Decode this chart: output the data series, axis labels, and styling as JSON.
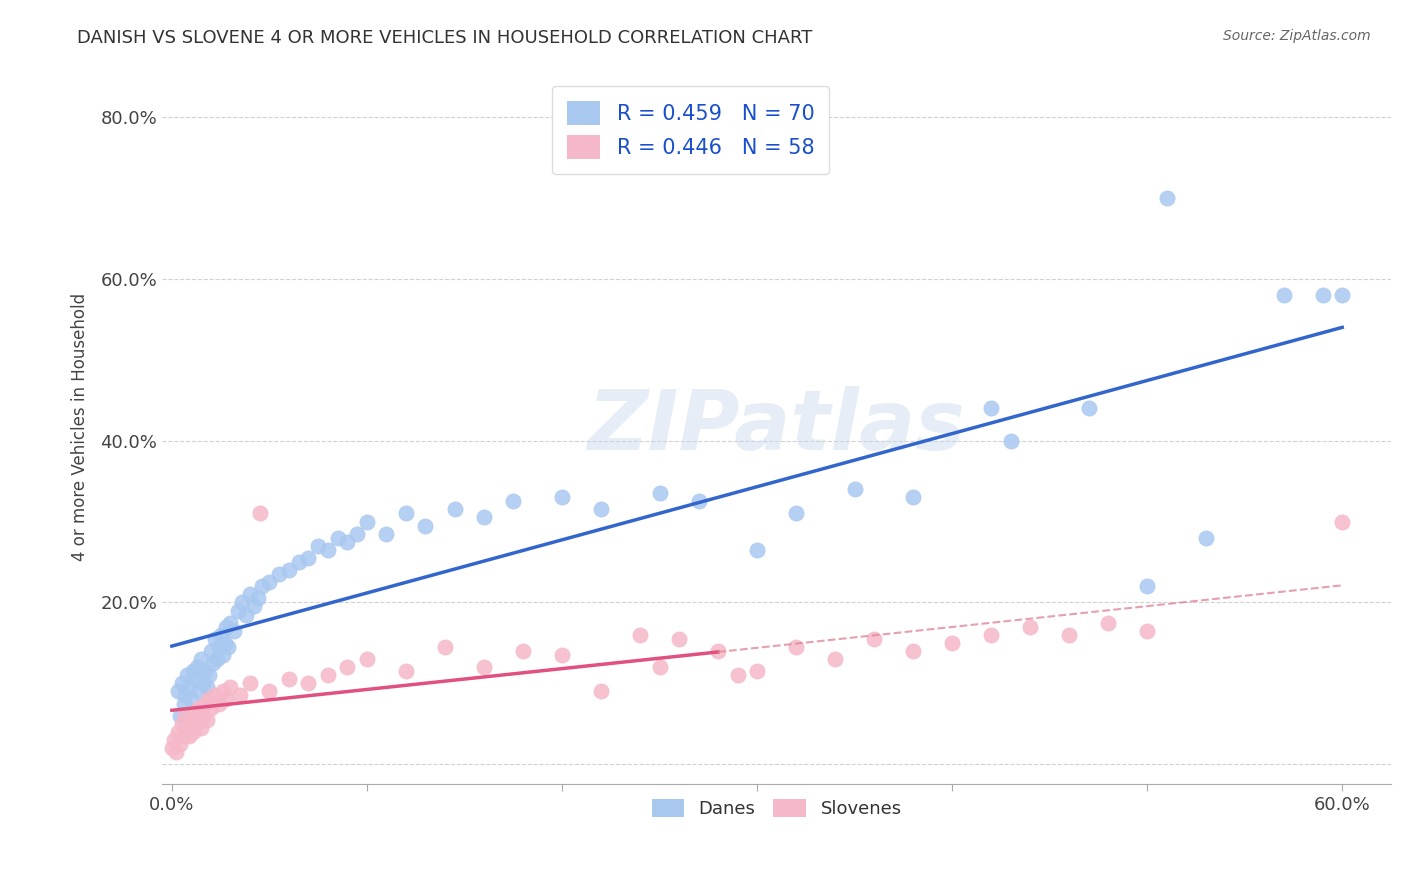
{
  "title": "DANISH VS SLOVENE 4 OR MORE VEHICLES IN HOUSEHOLD CORRELATION CHART",
  "source_text": "Source: ZipAtlas.com",
  "ylabel": "4 or more Vehicles in Household",
  "xlim": [
    -0.005,
    0.625
  ],
  "ylim": [
    -0.025,
    0.86
  ],
  "xtick_vals": [
    0.0,
    0.1,
    0.2,
    0.3,
    0.4,
    0.5,
    0.6
  ],
  "xtick_labels": [
    "0.0%",
    "",
    "",
    "",
    "",
    "",
    "60.0%"
  ],
  "ytick_vals": [
    0.0,
    0.2,
    0.4,
    0.6,
    0.8
  ],
  "ytick_labels": [
    "",
    "20.0%",
    "40.0%",
    "60.0%",
    "80.0%"
  ],
  "danes_R": 0.459,
  "danes_N": 70,
  "slovenes_R": 0.446,
  "slovenes_N": 58,
  "danes_color": "#a8c8f0",
  "slovenes_color": "#f5b8c8",
  "danes_line_color": "#3366cc",
  "slovenes_line_color": "#e05080",
  "dashed_line_color": "#e08898",
  "watermark": "ZIPatlas",
  "background_color": "#ffffff",
  "danes_x": [
    0.003,
    0.004,
    0.005,
    0.006,
    0.007,
    0.008,
    0.009,
    0.01,
    0.011,
    0.012,
    0.013,
    0.014,
    0.015,
    0.016,
    0.017,
    0.018,
    0.019,
    0.02,
    0.021,
    0.022,
    0.023,
    0.024,
    0.025,
    0.026,
    0.027,
    0.028,
    0.029,
    0.03,
    0.032,
    0.034,
    0.036,
    0.038,
    0.04,
    0.042,
    0.044,
    0.046,
    0.05,
    0.055,
    0.06,
    0.065,
    0.07,
    0.075,
    0.08,
    0.085,
    0.09,
    0.095,
    0.1,
    0.11,
    0.12,
    0.13,
    0.145,
    0.16,
    0.175,
    0.2,
    0.22,
    0.25,
    0.27,
    0.3,
    0.32,
    0.35,
    0.38,
    0.42,
    0.43,
    0.47,
    0.5,
    0.51,
    0.53,
    0.57,
    0.59,
    0.6
  ],
  "danes_y": [
    0.09,
    0.06,
    0.1,
    0.075,
    0.085,
    0.11,
    0.095,
    0.08,
    0.115,
    0.105,
    0.12,
    0.09,
    0.13,
    0.1,
    0.115,
    0.095,
    0.11,
    0.14,
    0.125,
    0.155,
    0.13,
    0.145,
    0.16,
    0.135,
    0.15,
    0.17,
    0.145,
    0.175,
    0.165,
    0.19,
    0.2,
    0.185,
    0.21,
    0.195,
    0.205,
    0.22,
    0.225,
    0.235,
    0.24,
    0.25,
    0.255,
    0.27,
    0.265,
    0.28,
    0.275,
    0.285,
    0.3,
    0.285,
    0.31,
    0.295,
    0.315,
    0.305,
    0.325,
    0.33,
    0.315,
    0.335,
    0.325,
    0.265,
    0.31,
    0.34,
    0.33,
    0.44,
    0.4,
    0.44,
    0.22,
    0.7,
    0.28,
    0.58,
    0.58,
    0.58
  ],
  "slovenes_x": [
    0.0,
    0.001,
    0.002,
    0.003,
    0.004,
    0.005,
    0.006,
    0.007,
    0.008,
    0.009,
    0.01,
    0.011,
    0.012,
    0.013,
    0.014,
    0.015,
    0.016,
    0.017,
    0.018,
    0.019,
    0.02,
    0.022,
    0.024,
    0.026,
    0.028,
    0.03,
    0.035,
    0.04,
    0.045,
    0.05,
    0.06,
    0.07,
    0.08,
    0.09,
    0.1,
    0.12,
    0.14,
    0.16,
    0.18,
    0.2,
    0.22,
    0.24,
    0.25,
    0.26,
    0.28,
    0.29,
    0.3,
    0.32,
    0.34,
    0.36,
    0.38,
    0.4,
    0.42,
    0.44,
    0.46,
    0.48,
    0.5,
    0.6
  ],
  "slovenes_y": [
    0.02,
    0.03,
    0.015,
    0.04,
    0.025,
    0.05,
    0.035,
    0.06,
    0.045,
    0.035,
    0.055,
    0.04,
    0.065,
    0.05,
    0.07,
    0.045,
    0.06,
    0.075,
    0.055,
    0.08,
    0.07,
    0.085,
    0.075,
    0.09,
    0.08,
    0.095,
    0.085,
    0.1,
    0.31,
    0.09,
    0.105,
    0.1,
    0.11,
    0.12,
    0.13,
    0.115,
    0.145,
    0.12,
    0.14,
    0.135,
    0.09,
    0.16,
    0.12,
    0.155,
    0.14,
    0.11,
    0.115,
    0.145,
    0.13,
    0.155,
    0.14,
    0.15,
    0.16,
    0.17,
    0.16,
    0.175,
    0.165,
    0.3
  ]
}
